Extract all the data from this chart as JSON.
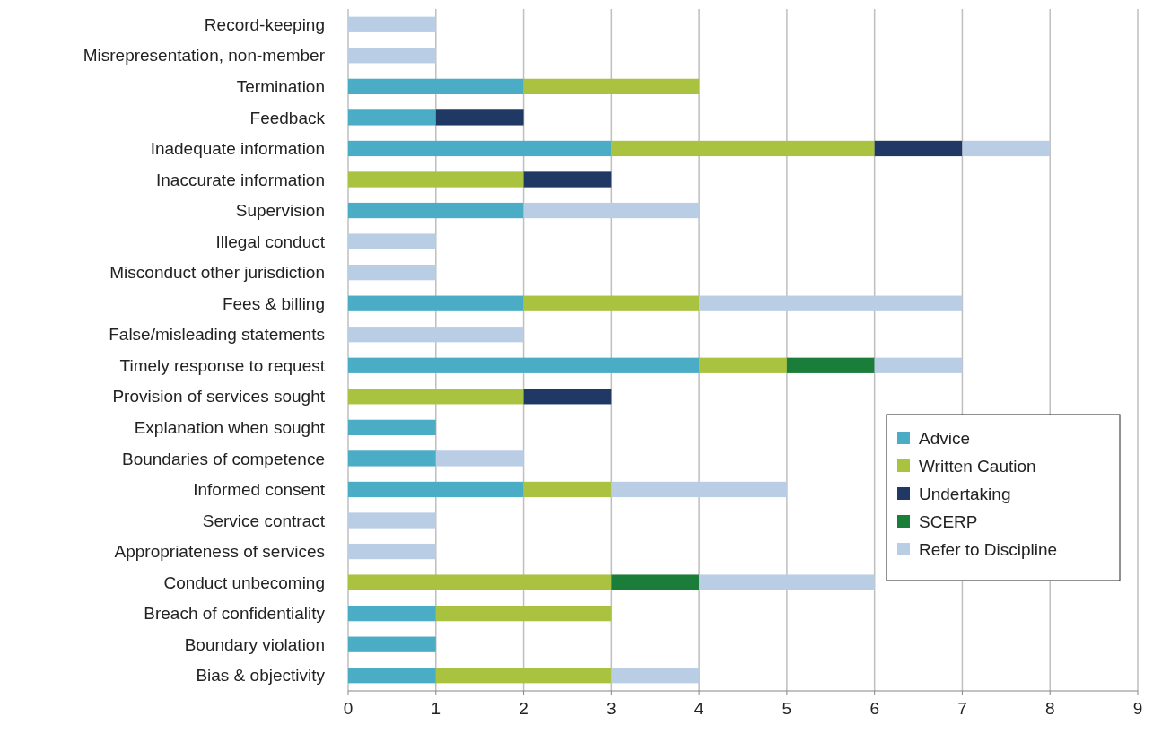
{
  "chart_data": {
    "type": "bar",
    "orientation": "horizontal",
    "stacked": true,
    "categories": [
      "Record-keeping",
      "Misrepresentation, non-member",
      "Termination",
      "Feedback",
      "Inadequate information",
      "Inaccurate information",
      "Supervision",
      "Illegal conduct",
      "Misconduct other jurisdiction",
      "Fees & billing",
      "False/misleading statements",
      "Timely response to request",
      "Provision of services sought",
      "Explanation when sought",
      "Boundaries of competence",
      "Informed consent",
      "Service contract",
      "Appropriateness of services",
      "Conduct unbecoming",
      "Breach of confidentiality",
      "Boundary violation",
      "Bias & objectivity"
    ],
    "series": [
      {
        "name": "Advice",
        "color": "#4bacc6",
        "values": [
          0,
          0,
          2,
          1,
          3,
          0,
          2,
          0,
          0,
          2,
          0,
          4,
          0,
          1,
          1,
          2,
          0,
          0,
          0,
          1,
          1,
          1
        ]
      },
      {
        "name": "Written Caution",
        "color": "#a9c23f",
        "values": [
          0,
          0,
          2,
          0,
          3,
          2,
          0,
          0,
          0,
          2,
          0,
          1,
          2,
          0,
          0,
          1,
          0,
          0,
          3,
          2,
          0,
          2
        ]
      },
      {
        "name": "Undertaking",
        "color": "#1f3864",
        "values": [
          0,
          0,
          0,
          1,
          1,
          1,
          0,
          0,
          0,
          0,
          0,
          0,
          1,
          0,
          0,
          0,
          0,
          0,
          0,
          0,
          0,
          0
        ]
      },
      {
        "name": "SCERP",
        "color": "#1a7d3a",
        "values": [
          0,
          0,
          0,
          0,
          0,
          0,
          0,
          0,
          0,
          0,
          0,
          1,
          0,
          0,
          0,
          0,
          0,
          0,
          1,
          0,
          0,
          0
        ]
      },
      {
        "name": "Refer to Discipline",
        "color": "#b9cde5",
        "values": [
          1,
          1,
          0,
          0,
          1,
          0,
          2,
          1,
          1,
          3,
          2,
          1,
          0,
          0,
          1,
          2,
          1,
          1,
          2,
          0,
          0,
          1
        ]
      }
    ],
    "xlim": [
      0,
      9
    ],
    "xticks": [
      0,
      1,
      2,
      3,
      4,
      5,
      6,
      7,
      8,
      9
    ],
    "grid": "x",
    "legend": "bottom right"
  }
}
